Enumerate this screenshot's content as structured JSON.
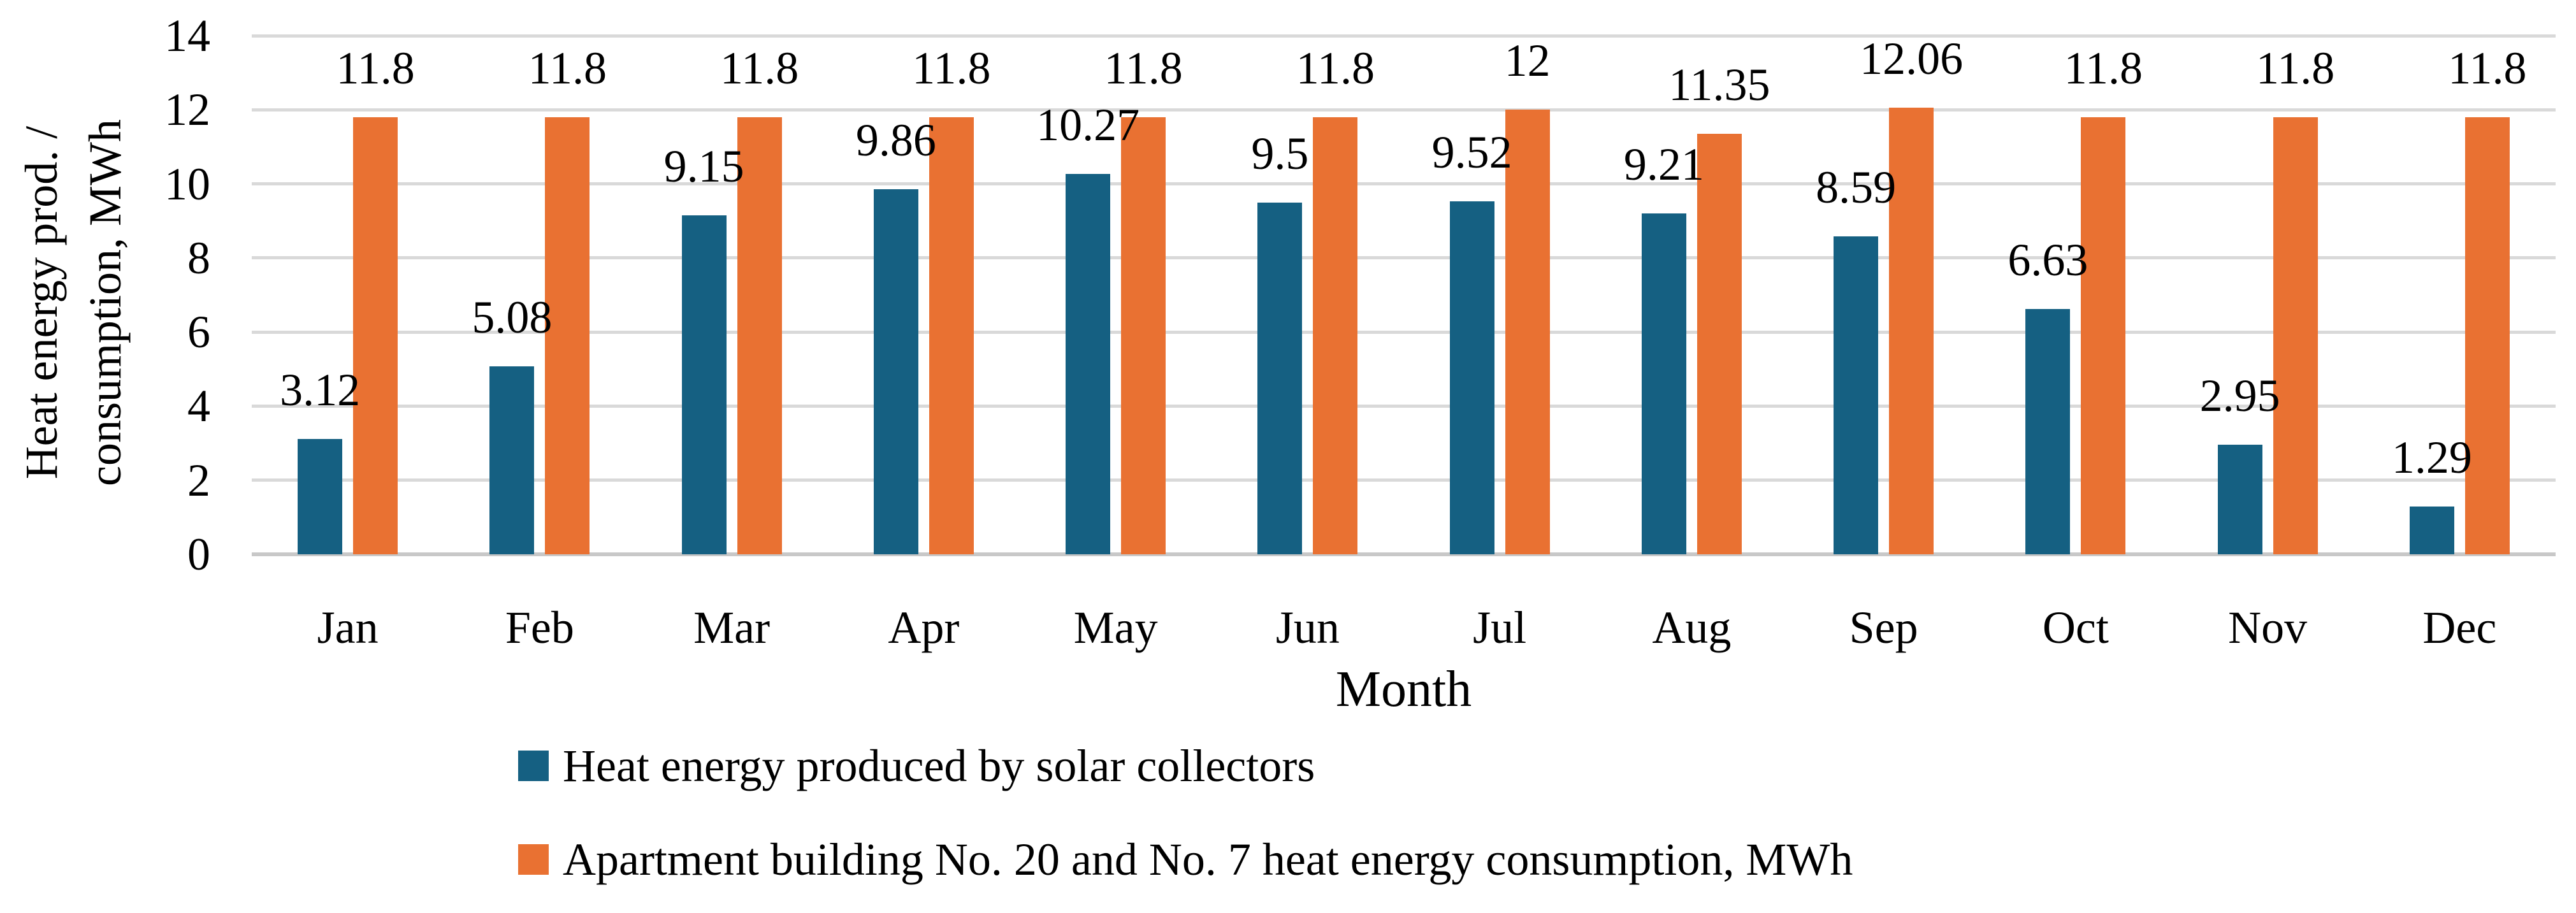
{
  "chart_data": {
    "type": "bar",
    "title": "",
    "xlabel": "Month",
    "ylabel_lines": [
      "Heat energy prod. /",
      "consumption, MWh"
    ],
    "ylim": [
      0,
      14
    ],
    "ytick_step": 2,
    "yticks": [
      "0",
      "2",
      "4",
      "6",
      "8",
      "10",
      "12",
      "14"
    ],
    "grid": "horizontal gridlines on",
    "legend_position": "bottom-left, stacked rows",
    "categories": [
      "Jan",
      "Feb",
      "Mar",
      "Apr",
      "May",
      "Jun",
      "Jul",
      "Aug",
      "Sep",
      "Oct",
      "Nov",
      "Dec"
    ],
    "series": [
      {
        "name": "Heat energy produced by solar collectors",
        "color": "#156082",
        "values": [
          3.12,
          5.08,
          9.15,
          9.86,
          10.27,
          9.5,
          9.52,
          9.21,
          8.59,
          6.63,
          2.95,
          1.29
        ],
        "labels": [
          "3.12",
          "5.08",
          "9.15",
          "9.86",
          "10.27",
          "9.5",
          "9.52",
          "9.21",
          "8.59",
          "6.63",
          "2.95",
          "1.29"
        ]
      },
      {
        "name": "Apartment building No. 20 and No. 7 heat energy consumption, MWh",
        "color": "#E97132",
        "values": [
          11.8,
          11.8,
          11.8,
          11.8,
          11.8,
          11.8,
          12,
          11.35,
          12.06,
          11.8,
          11.8,
          11.8
        ],
        "labels": [
          "11.8",
          "11.8",
          "11.8",
          "11.8",
          "11.8",
          "11.8",
          "12",
          "11.35",
          "12.06",
          "11.8",
          "11.8",
          "11.8"
        ]
      }
    ],
    "colors": {
      "gridline": "#D9D9D9",
      "axis_line": "#C8C8C8",
      "text": "#000000",
      "background": "#FFFFFF"
    }
  }
}
